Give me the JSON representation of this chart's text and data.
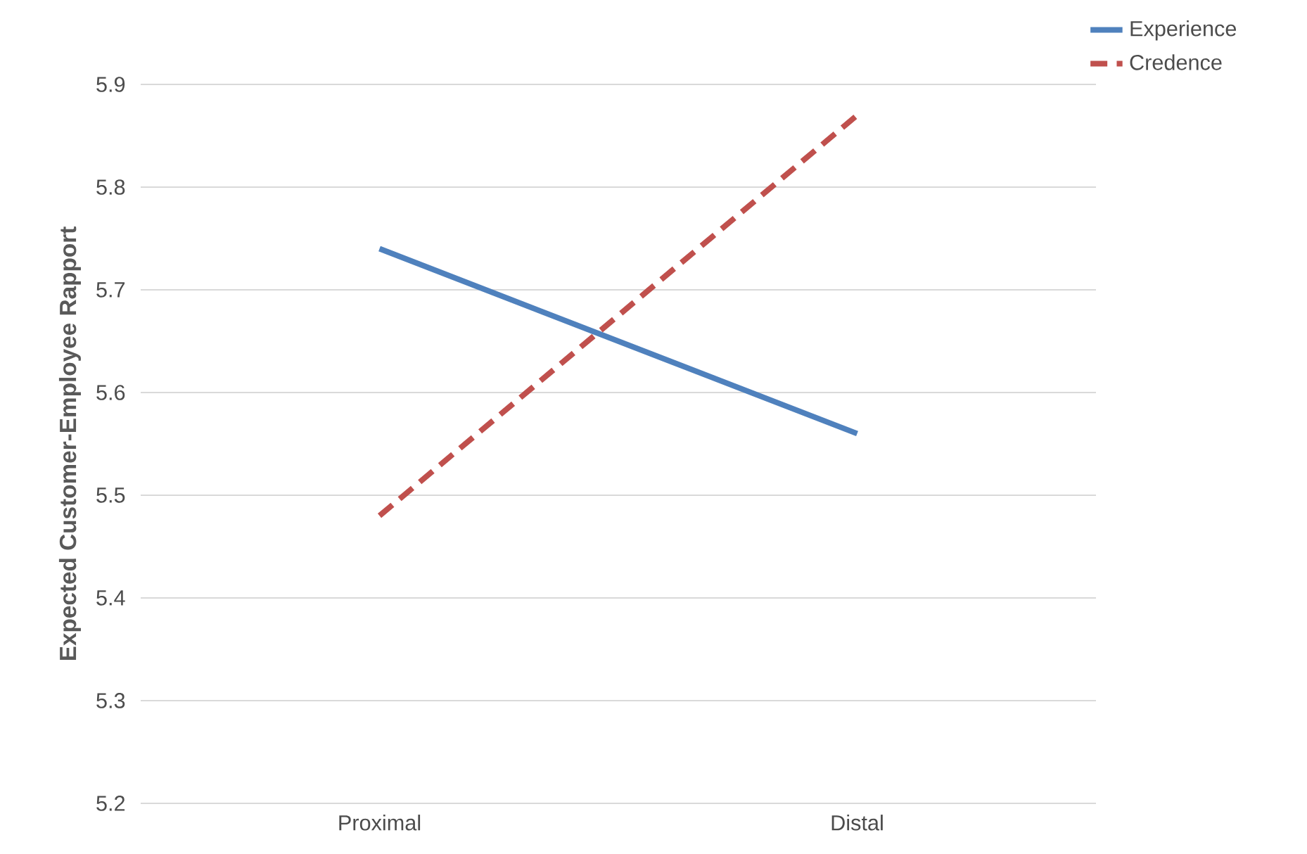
{
  "chart_data": {
    "type": "line",
    "ylabel": "Expected Customer-Employee Rapport",
    "categories": [
      "Proximal",
      "Distal"
    ],
    "series": [
      {
        "name": "Experience",
        "color": "#4f81bd",
        "line_style": "solid",
        "values": [
          5.74,
          5.56
        ]
      },
      {
        "name": "Credence",
        "color": "#c0504d",
        "line_style": "dashed",
        "values": [
          5.48,
          5.87
        ]
      }
    ],
    "ylim": [
      5.2,
      5.9
    ],
    "yticks": [
      5.2,
      5.3,
      5.4,
      5.5,
      5.6,
      5.7,
      5.8,
      5.9
    ],
    "grid": "y",
    "legend": "top right",
    "marker": "none"
  }
}
